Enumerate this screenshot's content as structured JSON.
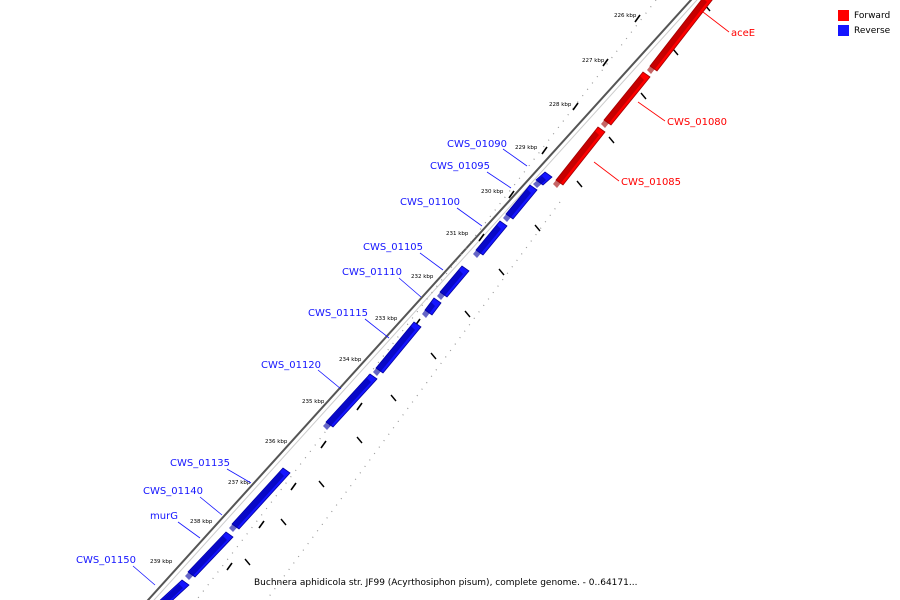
{
  "colors": {
    "forward": "#ff0000",
    "reverse": "#1515ff",
    "backbone": "#777777"
  },
  "legend": [
    {
      "label": "Forward",
      "color": "#ff0000"
    },
    {
      "label": "Reverse",
      "color": "#1515ff"
    }
  ],
  "caption": "Buchnera aphidicola str. JF99 (Acyrthosiphon pisum), complete genome. - 0..64171...",
  "scale_labels": [
    "226 kbp",
    "227 kbp",
    "228 kbp",
    "229 kbp",
    "230 kbp",
    "231 kbp",
    "232 kbp",
    "233 kbp",
    "234 kbp",
    "235 kbp",
    "236 kbp",
    "237 kbp",
    "238 kbp",
    "239 kbp"
  ],
  "forward_genes": [
    "aceE",
    "CWS_01080",
    "CWS_01085"
  ],
  "reverse_genes": [
    "CWS_01090",
    "CWS_01095",
    "CWS_01100",
    "CWS_01105",
    "CWS_01110",
    "CWS_01115",
    "CWS_01120",
    "CWS_01135",
    "CWS_01140",
    "murG",
    "CWS_01150"
  ]
}
